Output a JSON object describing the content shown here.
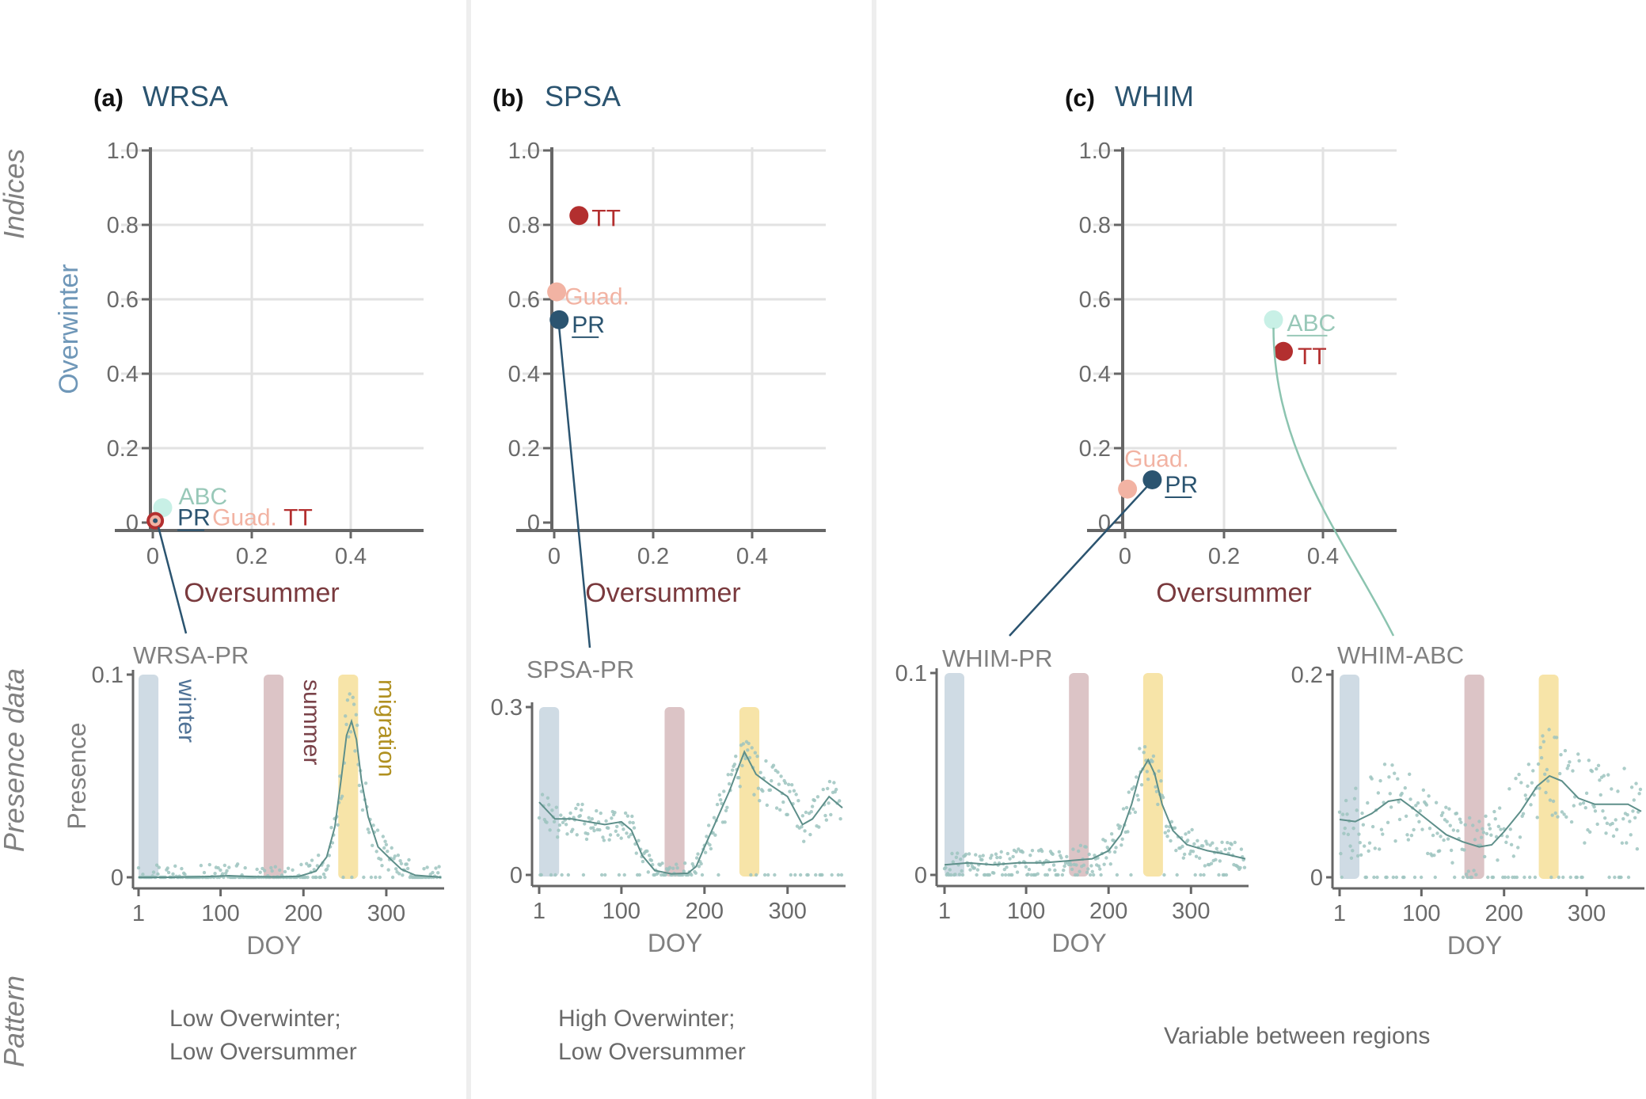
{
  "colors": {
    "navy": "#2b5470",
    "teal_pt": "#c8f0e6",
    "teal_line": "#8cc4b0",
    "abc_label": "#98c8b8",
    "salmon": "#f2b3a3",
    "red": "#b32f2f",
    "maroon": "#7a3a3e",
    "overwinter_label": "#6f97b8",
    "gray_text": "#808080",
    "axis": "#666666",
    "grid": "#e2e2e2",
    "winter_band": "#cfdbe4",
    "summer_band": "#dcc4c6",
    "migration_band": "#f7e4a8",
    "winter_text": "#4f7296",
    "summer_text": "#7a4249",
    "migration_text": "#b09020",
    "scatter": "#9ec4c0",
    "curve": "#5e8f8a"
  },
  "row_labels": {
    "indices": "Indices",
    "presence_data": "Presence data",
    "pattern": "Pattern"
  },
  "panels": [
    {
      "tag": "(a)",
      "species": "WRSA",
      "pattern_lines": [
        "Low Overwinter;",
        "Low Oversummer"
      ]
    },
    {
      "tag": "(b)",
      "species": "SPSA",
      "pattern_lines": [
        "High Overwinter;",
        "Low Oversummer"
      ]
    },
    {
      "tag": "(c)",
      "species": "WHIM",
      "pattern_lines": [
        "Variable between regions"
      ]
    }
  ],
  "chart_data": [
    {
      "type": "scatter",
      "title": "(a) WRSA",
      "xlabel": "Oversummer",
      "ylabel": "Overwinter",
      "xlim": [
        0,
        0.55
      ],
      "ylim": [
        0,
        1.0
      ],
      "x_ticks": [
        "0",
        "0.2",
        "0.4"
      ],
      "y_ticks": [
        "0",
        "0.2",
        "0.4",
        "0.6",
        "0.8",
        "1.0"
      ],
      "points": [
        {
          "label": "ABC",
          "x": 0.02,
          "y": 0.04,
          "color_key": "teal_pt",
          "label_color_key": "abc_label"
        },
        {
          "label": "Guad.",
          "x": 0.005,
          "y": 0.005,
          "color_key": "salmon",
          "label_color_key": "salmon"
        },
        {
          "label": "TT",
          "x": 0.005,
          "y": 0.005,
          "color_key": "red",
          "label_color_key": "red"
        },
        {
          "label": "PR",
          "x": 0.005,
          "y": 0.005,
          "color_key": "navy",
          "label_color_key": "navy",
          "underline": true
        }
      ]
    },
    {
      "type": "scatter",
      "title": "(b) SPSA",
      "xlabel": "Oversummer",
      "ylabel": "",
      "xlim": [
        0,
        0.55
      ],
      "ylim": [
        0,
        1.0
      ],
      "x_ticks": [
        "0",
        "0.2",
        "0.4"
      ],
      "y_ticks": [
        "0",
        "0.2",
        "0.4",
        "0.6",
        "0.8",
        "1.0"
      ],
      "points": [
        {
          "label": "TT",
          "x": 0.05,
          "y": 0.825,
          "color_key": "red",
          "label_color_key": "red"
        },
        {
          "label": "Guad.",
          "x": 0.005,
          "y": 0.62,
          "color_key": "salmon",
          "label_color_key": "salmon"
        },
        {
          "label": "PR",
          "x": 0.01,
          "y": 0.545,
          "color_key": "navy",
          "label_color_key": "navy",
          "underline": true
        }
      ]
    },
    {
      "type": "scatter",
      "title": "(c) WHIM",
      "xlabel": "Oversummer",
      "ylabel": "",
      "xlim": [
        0,
        0.55
      ],
      "ylim": [
        0,
        1.0
      ],
      "x_ticks": [
        "0",
        "0.2",
        "0.4"
      ],
      "y_ticks": [
        "0",
        "0.2",
        "0.4",
        "0.6",
        "0.8",
        "1.0"
      ],
      "points": [
        {
          "label": "ABC",
          "x": 0.3,
          "y": 0.545,
          "color_key": "teal_pt",
          "label_color_key": "abc_label",
          "underline": true
        },
        {
          "label": "TT",
          "x": 0.32,
          "y": 0.46,
          "color_key": "red",
          "label_color_key": "red"
        },
        {
          "label": "Guad.",
          "x": 0.005,
          "y": 0.09,
          "color_key": "salmon",
          "label_color_key": "salmon"
        },
        {
          "label": "PR",
          "x": 0.055,
          "y": 0.115,
          "color_key": "navy",
          "label_color_key": "navy",
          "underline": true
        }
      ]
    },
    {
      "type": "line",
      "title": "WRSA-PR",
      "xlabel": "DOY",
      "ylabel": "Presence",
      "xlim": [
        1,
        366
      ],
      "ylim": [
        0,
        0.1
      ],
      "x_ticks": [
        "1",
        "100",
        "200",
        "300"
      ],
      "y_ticks": [
        "0",
        "0.1"
      ],
      "bands": [
        {
          "name": "winter",
          "from": 1,
          "to": 25,
          "label": "winter"
        },
        {
          "name": "summer",
          "from": 152,
          "to": 176,
          "label": "summer"
        },
        {
          "name": "migration",
          "from": 242,
          "to": 266,
          "label": "migration"
        }
      ],
      "curve": {
        "x": [
          1,
          40,
          80,
          110,
          140,
          170,
          195,
          215,
          228,
          238,
          246,
          252,
          258,
          264,
          270,
          278,
          290,
          305,
          318,
          335,
          366
        ],
        "y": [
          0,
          0,
          0.0003,
          0.0008,
          0.0003,
          0.0002,
          0.0005,
          0.003,
          0.01,
          0.025,
          0.05,
          0.07,
          0.077,
          0.068,
          0.048,
          0.03,
          0.015,
          0.009,
          0.004,
          0.001,
          0
        ]
      },
      "points_note": "daily presence scatter (approximate)"
    },
    {
      "type": "line",
      "title": "SPSA-PR",
      "xlabel": "DOY",
      "ylabel": "",
      "xlim": [
        1,
        366
      ],
      "ylim": [
        0,
        0.3
      ],
      "x_ticks": [
        "1",
        "100",
        "200",
        "300"
      ],
      "y_ticks": [
        "0",
        "0.3"
      ],
      "bands": [
        {
          "name": "winter",
          "from": 1,
          "to": 25
        },
        {
          "name": "summer",
          "from": 152,
          "to": 176
        },
        {
          "name": "migration",
          "from": 242,
          "to": 266
        }
      ],
      "curve": {
        "x": [
          1,
          20,
          40,
          60,
          80,
          100,
          112,
          125,
          140,
          160,
          180,
          190,
          200,
          215,
          230,
          248,
          262,
          280,
          300,
          318,
          330,
          350,
          366
        ],
        "y": [
          0.13,
          0.1,
          0.1,
          0.095,
          0.09,
          0.095,
          0.08,
          0.035,
          0.008,
          0.002,
          0.003,
          0.015,
          0.05,
          0.1,
          0.15,
          0.22,
          0.18,
          0.16,
          0.14,
          0.09,
          0.1,
          0.14,
          0.12
        ]
      }
    },
    {
      "type": "line",
      "title": "WHIM-PR",
      "xlabel": "DOY",
      "ylabel": "",
      "xlim": [
        1,
        366
      ],
      "ylim": [
        0,
        0.1
      ],
      "x_ticks": [
        "1",
        "100",
        "200",
        "300"
      ],
      "y_ticks": [
        "0",
        "0.1"
      ],
      "bands": [
        {
          "name": "winter",
          "from": 1,
          "to": 25
        },
        {
          "name": "summer",
          "from": 152,
          "to": 176
        },
        {
          "name": "migration",
          "from": 242,
          "to": 266
        }
      ],
      "curve": {
        "x": [
          1,
          30,
          60,
          90,
          120,
          150,
          180,
          200,
          215,
          228,
          238,
          248,
          256,
          265,
          278,
          295,
          320,
          345,
          366
        ],
        "y": [
          0.005,
          0.006,
          0.005,
          0.006,
          0.006,
          0.007,
          0.008,
          0.012,
          0.02,
          0.035,
          0.05,
          0.057,
          0.05,
          0.035,
          0.022,
          0.015,
          0.012,
          0.01,
          0.008
        ]
      }
    },
    {
      "type": "line",
      "title": "WHIM-ABC",
      "xlabel": "DOY",
      "ylabel": "",
      "xlim": [
        1,
        366
      ],
      "ylim": [
        0,
        0.2
      ],
      "x_ticks": [
        "1",
        "100",
        "200",
        "300"
      ],
      "y_ticks": [
        "0",
        "0.2"
      ],
      "bands": [
        {
          "name": "winter",
          "from": 1,
          "to": 25
        },
        {
          "name": "summer",
          "from": 152,
          "to": 176
        },
        {
          "name": "migration",
          "from": 242,
          "to": 266
        }
      ],
      "curve": {
        "x": [
          1,
          20,
          40,
          60,
          75,
          90,
          110,
          130,
          150,
          170,
          185,
          200,
          220,
          240,
          255,
          270,
          290,
          310,
          330,
          350,
          366
        ],
        "y": [
          0.057,
          0.055,
          0.063,
          0.075,
          0.077,
          0.068,
          0.055,
          0.042,
          0.035,
          0.03,
          0.032,
          0.045,
          0.065,
          0.09,
          0.1,
          0.095,
          0.078,
          0.072,
          0.072,
          0.072,
          0.065
        ]
      }
    }
  ]
}
